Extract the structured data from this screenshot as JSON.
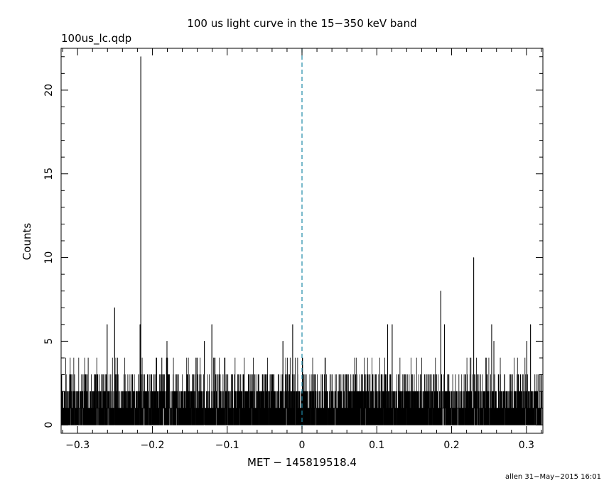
{
  "chart_data": {
    "type": "line",
    "title": "100 us light curve in the 15−350 keV band",
    "subtitle": "100us_lc.qdp",
    "xlabel": "MET − 145819518.4",
    "ylabel": "Counts",
    "footer": "allen 31−May−2015 16:01",
    "xlim": [
      -0.322,
      0.322
    ],
    "ylim": [
      -0.5,
      22.5
    ],
    "x_ticks": [
      -0.3,
      -0.2,
      -0.1,
      0,
      0.1,
      0.2,
      0.3
    ],
    "x_tick_labels": [
      "−0.3",
      "−0.2",
      "−0.1",
      "0",
      "0.1",
      "0.2",
      "0.3"
    ],
    "y_ticks": [
      0,
      5,
      10,
      15,
      20
    ],
    "y_tick_labels": [
      "0",
      "5",
      "10",
      "15",
      "20"
    ],
    "bin_width": 0.0001,
    "baseline_level": 2,
    "peaks": [
      {
        "x": -0.2155,
        "y": 22
      },
      {
        "x": -0.2165,
        "y": 6
      },
      {
        "x": -0.2505,
        "y": 7
      },
      {
        "x": -0.2605,
        "y": 6
      },
      {
        "x": -0.2755,
        "y": 3
      },
      {
        "x": -0.1805,
        "y": 5
      },
      {
        "x": -0.1305,
        "y": 5
      },
      {
        "x": -0.1205,
        "y": 6
      },
      {
        "x": -0.0255,
        "y": 5
      },
      {
        "x": -0.0125,
        "y": 6
      },
      {
        "x": 0.1145,
        "y": 6
      },
      {
        "x": 0.1205,
        "y": 6
      },
      {
        "x": 0.1855,
        "y": 8
      },
      {
        "x": 0.1905,
        "y": 6
      },
      {
        "x": 0.2295,
        "y": 10
      },
      {
        "x": 0.2535,
        "y": 6
      },
      {
        "x": 0.2565,
        "y": 5
      },
      {
        "x": 0.3005,
        "y": 5
      },
      {
        "x": 0.3055,
        "y": 6
      }
    ],
    "vline": {
      "x": 0,
      "color": "#1f8aa8",
      "style": "dashed"
    },
    "grid": false,
    "line_color": "#000000"
  }
}
